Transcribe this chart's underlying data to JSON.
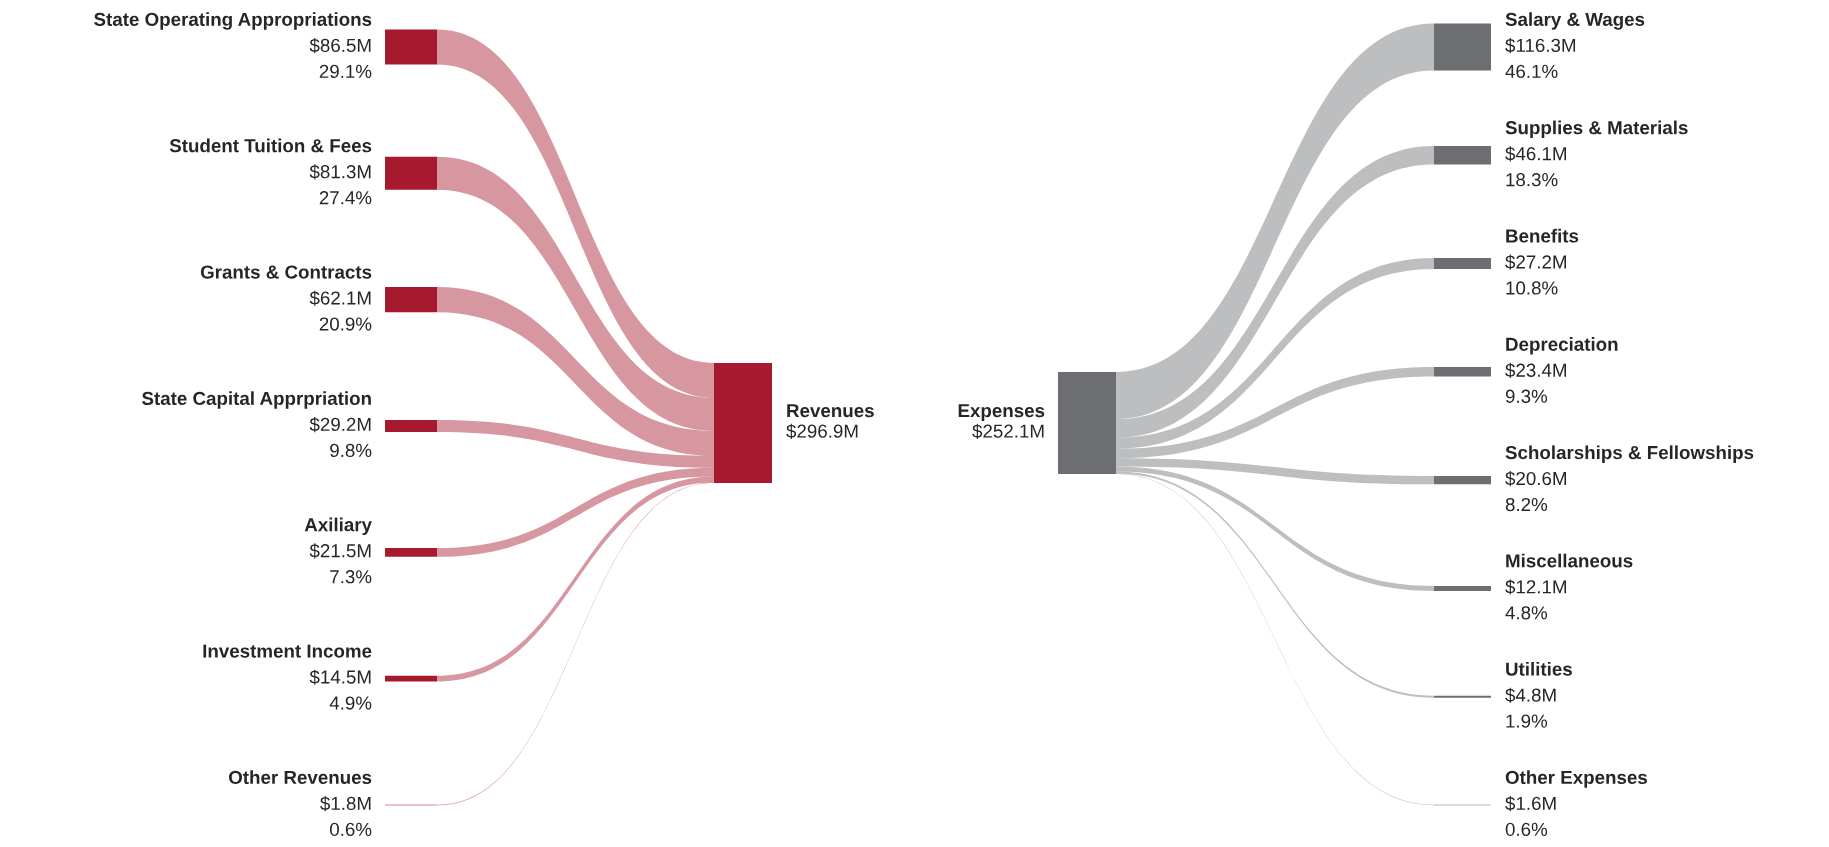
{
  "chart_data": [
    {
      "type": "other",
      "title": "Revenues",
      "subtitle": "$296.9M",
      "color": "#a6192e",
      "categories": [
        "State Operating Appropriations",
        "Student Tuition & Fees",
        "Grants & Contracts",
        "State Capital Apprpriation",
        "Axiliary",
        "Investment Income",
        "Other Revenues"
      ],
      "values": [
        86.5,
        81.3,
        62.1,
        29.2,
        21.5,
        14.5,
        1.8
      ],
      "value_labels": [
        "$86.5M",
        "$81.3M",
        "$62.1M",
        "$29.2M",
        "$21.5M",
        "$14.5M",
        "$1.8M"
      ],
      "annotations": [
        "29.1%",
        "27.4%",
        "20.9%",
        "9.8%",
        "7.3%",
        "4.9%",
        "0.6%"
      ]
    },
    {
      "type": "other",
      "title": "Expenses",
      "subtitle": "$252.1M",
      "color": "#6d6e71",
      "categories": [
        "Salary & Wages",
        "Supplies & Materials",
        "Benefits",
        "Depreciation",
        "Scholarships & Fellowships",
        "Miscellaneous",
        "Utilities",
        "Other Expenses"
      ],
      "values": [
        116.3,
        46.1,
        27.2,
        23.4,
        20.6,
        12.1,
        4.8,
        1.6
      ],
      "value_labels": [
        "$116.3M",
        "$46.1M",
        "$27.2M",
        "$23.4M",
        "$20.6M",
        "$12.1M",
        "$4.8M",
        "$1.6M"
      ],
      "annotations": [
        "46.1%",
        "18.3%",
        "10.8%",
        "9.3%",
        "8.2%",
        "4.8%",
        "1.9%",
        "0.6%"
      ]
    }
  ]
}
